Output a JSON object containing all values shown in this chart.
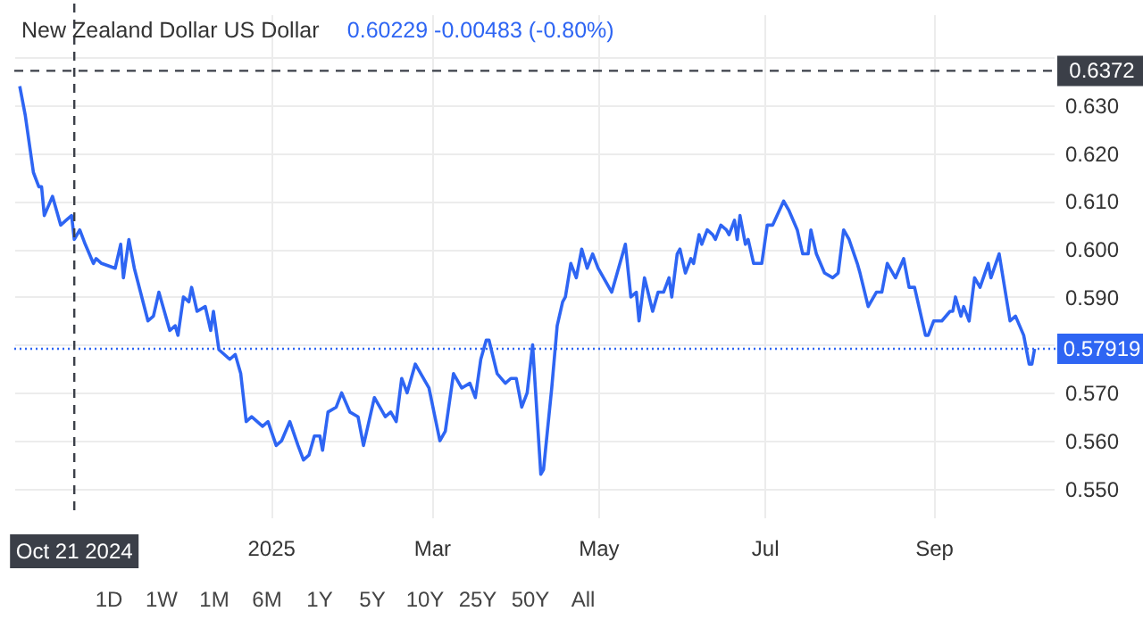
{
  "chart_data": {
    "type": "line",
    "title": "New Zealand Dollar US Dollar",
    "subtitle": "0.60229  -0.00483 (-0.80%)",
    "x": [
      "2024-10-01",
      "2024-10-03",
      "2024-10-04",
      "2024-10-06",
      "2024-10-08",
      "2024-10-09",
      "2024-10-10",
      "2024-10-13",
      "2024-10-14",
      "2024-10-16",
      "2024-10-18",
      "2024-10-20",
      "2024-10-21",
      "2024-10-23",
      "2024-10-25",
      "2024-10-28",
      "2024-10-29",
      "2024-10-31",
      "2024-11-05",
      "2024-11-07",
      "2024-11-08",
      "2024-11-10",
      "2024-11-12",
      "2024-11-17",
      "2024-11-19",
      "2024-11-21",
      "2024-11-23",
      "2024-11-25",
      "2024-11-27",
      "2024-11-28",
      "2024-11-30",
      "2024-12-02",
      "2024-12-03",
      "2024-12-05",
      "2024-12-08",
      "2024-12-10",
      "2024-12-11",
      "2024-12-13",
      "2024-12-17",
      "2024-12-19",
      "2024-12-21",
      "2024-12-23",
      "2024-12-25",
      "2024-12-29",
      "2024-12-31",
      "2025-01-03",
      "2025-01-05",
      "2025-01-08",
      "2025-01-11",
      "2025-01-13",
      "2025-01-15",
      "2025-01-17",
      "2025-01-19",
      "2025-01-20",
      "2025-01-22",
      "2025-01-25",
      "2025-01-27",
      "2025-01-30",
      "2025-02-02",
      "2025-02-04",
      "2025-02-08",
      "2025-02-12",
      "2025-02-14",
      "2025-02-16",
      "2025-02-18",
      "2025-02-20",
      "2025-02-23",
      "2025-02-25",
      "2025-02-28",
      "2025-03-04",
      "2025-03-06",
      "2025-03-09",
      "2025-03-12",
      "2025-03-15",
      "2025-03-17",
      "2025-03-19",
      "2025-03-21",
      "2025-03-22",
      "2025-03-25",
      "2025-03-28",
      "2025-03-30",
      "2025-04-01",
      "2025-04-03",
      "2025-04-05",
      "2025-04-07",
      "2025-04-10",
      "2025-04-11",
      "2025-04-14",
      "2025-04-16",
      "2025-04-18",
      "2025-04-19",
      "2025-04-21",
      "2025-04-23",
      "2025-04-25",
      "2025-04-27",
      "2025-04-29",
      "2025-05-01",
      "2025-05-03",
      "2025-05-06",
      "2025-05-11",
      "2025-05-13",
      "2025-05-15",
      "2025-05-16",
      "2025-05-18",
      "2025-05-21",
      "2025-05-23",
      "2025-05-25",
      "2025-05-27",
      "2025-05-28",
      "2025-05-30",
      "2025-05-31",
      "2025-06-02",
      "2025-06-04",
      "2025-06-05",
      "2025-06-07",
      "2025-06-08",
      "2025-06-10",
      "2025-06-12",
      "2025-06-13",
      "2025-06-15",
      "2025-06-17",
      "2025-06-18",
      "2025-06-20",
      "2025-06-21",
      "2025-06-22",
      "2025-06-24",
      "2025-06-25",
      "2025-06-27",
      "2025-06-30",
      "2025-07-02",
      "2025-07-04",
      "2025-07-08",
      "2025-07-10",
      "2025-07-13",
      "2025-07-15",
      "2025-07-17",
      "2025-07-18",
      "2025-07-20",
      "2025-07-23",
      "2025-07-26",
      "2025-07-28",
      "2025-07-30",
      "2025-08-01",
      "2025-08-04",
      "2025-08-05",
      "2025-08-08",
      "2025-08-11",
      "2025-08-13",
      "2025-08-15",
      "2025-08-18",
      "2025-08-21",
      "2025-08-23",
      "2025-08-25",
      "2025-08-29",
      "2025-08-30",
      "2025-09-01",
      "2025-09-04",
      "2025-09-07",
      "2025-09-08",
      "2025-09-09",
      "2025-09-11",
      "2025-09-12",
      "2025-09-14",
      "2025-09-16",
      "2025-09-18",
      "2025-09-21",
      "2025-09-22",
      "2025-09-25",
      "2025-09-29",
      "2025-10-01",
      "2025-10-04",
      "2025-10-06",
      "2025-10-07",
      "2025-10-08"
    ],
    "series": [
      {
        "color": "#2e65f3",
        "values": [
          0.634,
          0.628,
          0.624,
          0.616,
          0.613,
          0.613,
          0.607,
          0.611,
          0.609,
          0.605,
          0.606,
          0.607,
          0.602,
          0.604,
          0.601,
          0.597,
          0.598,
          0.597,
          0.596,
          0.601,
          0.594,
          0.602,
          0.596,
          0.585,
          0.586,
          0.591,
          0.587,
          0.583,
          0.584,
          0.582,
          0.59,
          0.589,
          0.592,
          0.587,
          0.588,
          0.583,
          0.587,
          0.579,
          0.577,
          0.578,
          0.574,
          0.564,
          0.565,
          0.563,
          0.564,
          0.559,
          0.56,
          0.564,
          0.559,
          0.556,
          0.557,
          0.561,
          0.561,
          0.558,
          0.566,
          0.567,
          0.57,
          0.566,
          0.565,
          0.559,
          0.569,
          0.565,
          0.566,
          0.564,
          0.573,
          0.57,
          0.576,
          0.574,
          0.571,
          0.56,
          0.562,
          0.574,
          0.571,
          0.572,
          0.569,
          0.577,
          0.581,
          0.581,
          0.574,
          0.572,
          0.573,
          0.573,
          0.567,
          0.57,
          0.58,
          0.553,
          0.554,
          0.571,
          0.584,
          0.589,
          0.59,
          0.597,
          0.594,
          0.6,
          0.596,
          0.599,
          0.596,
          0.594,
          0.591,
          0.601,
          0.59,
          0.591,
          0.585,
          0.594,
          0.587,
          0.591,
          0.591,
          0.594,
          0.59,
          0.599,
          0.6,
          0.595,
          0.598,
          0.597,
          0.603,
          0.601,
          0.604,
          0.603,
          0.602,
          0.605,
          0.604,
          0.603,
          0.606,
          0.602,
          0.607,
          0.601,
          0.602,
          0.597,
          0.597,
          0.605,
          0.605,
          0.61,
          0.608,
          0.604,
          0.599,
          0.599,
          0.604,
          0.599,
          0.595,
          0.594,
          0.595,
          0.604,
          0.602,
          0.597,
          0.595,
          0.588,
          0.591,
          0.591,
          0.597,
          0.594,
          0.598,
          0.592,
          0.592,
          0.582,
          0.582,
          0.585,
          0.585,
          0.587,
          0.587,
          0.59,
          0.586,
          0.588,
          0.585,
          0.594,
          0.592,
          0.597,
          0.594,
          0.599,
          0.585,
          0.586,
          0.582,
          0.576,
          0.576,
          0.57919
        ]
      }
    ],
    "xlim": [
      "2024-09-29",
      "2025-10-15"
    ],
    "xticks": [
      {
        "value": "2025-01-01",
        "label": "2025"
      },
      {
        "value": "2025-03-01",
        "label": "Mar"
      },
      {
        "value": "2025-05-01",
        "label": "May"
      },
      {
        "value": "2025-07-01",
        "label": "Jul"
      },
      {
        "value": "2025-09-01",
        "label": "Sep"
      }
    ],
    "ylim": [
      0.544,
      0.649
    ],
    "yticks": [
      {
        "value": 0.55,
        "label": "0.550"
      },
      {
        "value": 0.56,
        "label": "0.560"
      },
      {
        "value": 0.57,
        "label": "0.570"
      },
      {
        "value": 0.58,
        "label": null
      },
      {
        "value": 0.59,
        "label": "0.590"
      },
      {
        "value": 0.6,
        "label": "0.600"
      },
      {
        "value": 0.61,
        "label": "0.610"
      },
      {
        "value": 0.62,
        "label": "0.620"
      },
      {
        "value": 0.63,
        "label": "0.630"
      },
      {
        "value": 0.64,
        "label": null
      }
    ],
    "grid": true,
    "ref_lines": [
      {
        "axis": "y",
        "value": 0.57919,
        "label": "0.57919",
        "color": "#2e65f3",
        "line_style": "dotted"
      },
      {
        "axis": "y",
        "value": 0.6372,
        "label": "0.6372",
        "color": "#3b3f48",
        "line_style": "dashed"
      },
      {
        "axis": "x",
        "value": "2024-10-21",
        "label": "Oct 21 2024",
        "color": "#3b3f48",
        "line_style": "dashed"
      }
    ],
    "annotations": [
      "1D",
      "1W",
      "1M",
      "6M",
      "1Y",
      "5Y",
      "10Y",
      "25Y",
      "50Y",
      "All"
    ]
  }
}
